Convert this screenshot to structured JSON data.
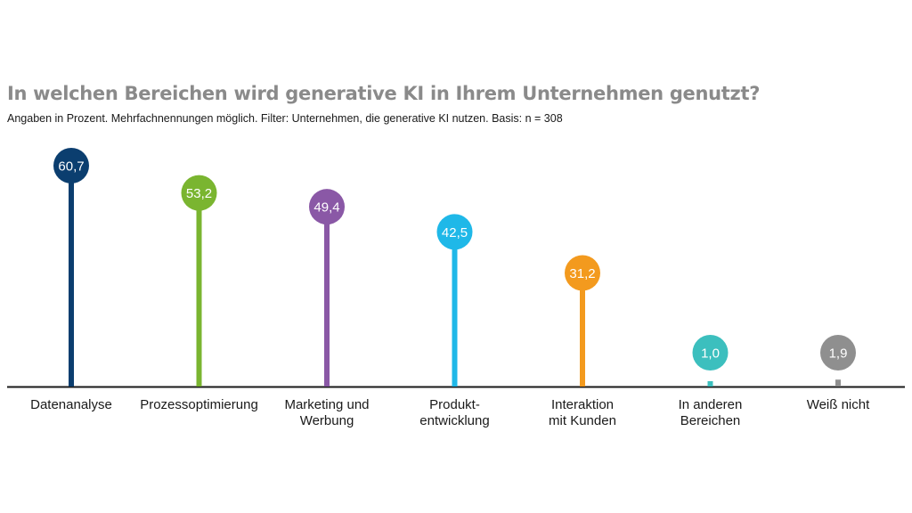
{
  "chart_data": {
    "type": "bar",
    "title": "In welchen Bereichen wird generative KI in Ihrem Unternehmen genutzt?",
    "subtitle": "Angaben in Prozent. Mehrfachnennungen möglich. Filter: Unternehmen, die generative KI nutzen. Basis: n = 308",
    "categories": [
      "Datenanalyse",
      "Prozessoptimierung",
      "Marketing und\nWerbung",
      "Produkt-\nentwicklung",
      "Interaktion\nmit Kunden",
      "In anderen\nBereichen",
      "Weiß nicht"
    ],
    "values": [
      60.7,
      53.2,
      49.4,
      42.5,
      31.2,
      1.0,
      1.9
    ],
    "value_labels": [
      "60,7",
      "53,2",
      "49,4",
      "42,5",
      "31,2",
      "1,0",
      "1,9"
    ],
    "colors": [
      "#0b3e6f",
      "#7ab530",
      "#8a58a6",
      "#1fb8e8",
      "#f39a1e",
      "#3cbfbe",
      "#8f8f8f"
    ],
    "ylim": [
      0,
      60.7
    ],
    "grid": false,
    "legend": "none"
  }
}
